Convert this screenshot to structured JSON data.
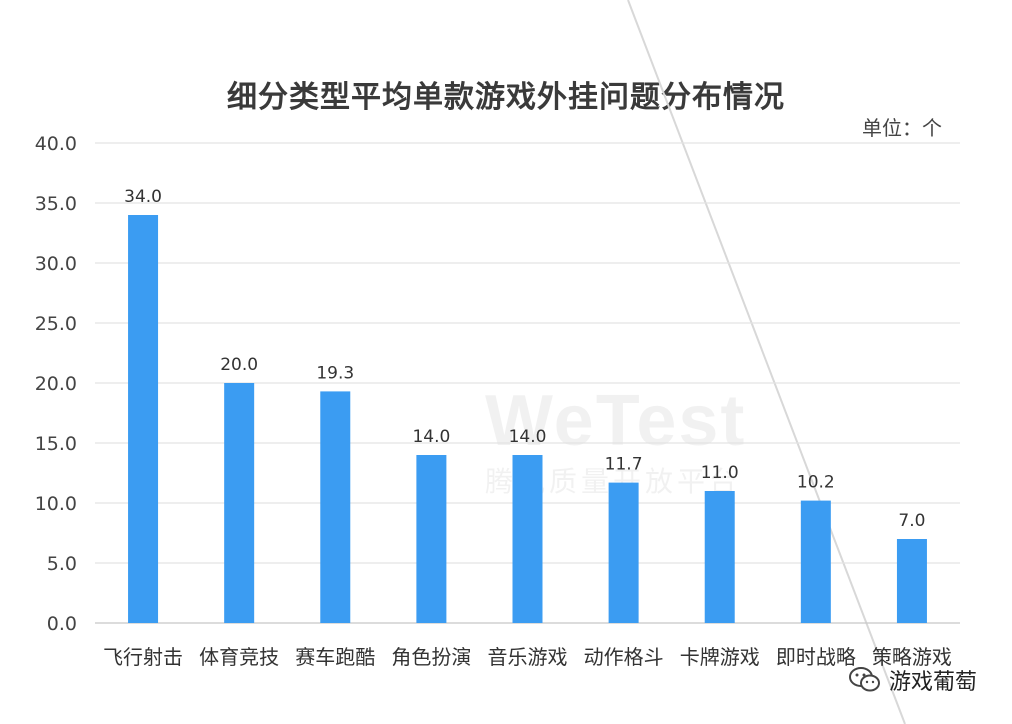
{
  "chart_data": {
    "type": "bar",
    "title": "细分类型平均单款游戏外挂问题分布情况",
    "unit_label": "单位：个",
    "categories": [
      "飞行射击",
      "体育竞技",
      "赛车跑酷",
      "角色扮演",
      "音乐游戏",
      "动作格斗",
      "卡牌游戏",
      "即时战略",
      "策略游戏"
    ],
    "values": [
      34.0,
      20.0,
      19.3,
      14.0,
      14.0,
      11.7,
      11.0,
      10.2,
      7.0
    ],
    "value_labels": [
      "34.0",
      "20.0",
      "19.3",
      "14.0",
      "14.0",
      "11.7",
      "11.0",
      "10.2",
      "7.0"
    ],
    "yticks": [
      "0.0",
      "5.0",
      "10.0",
      "15.0",
      "20.0",
      "25.0",
      "30.0",
      "35.0",
      "40.0"
    ],
    "ylim": [
      0,
      40
    ],
    "grid": true,
    "bar_color": "#3b9cf2"
  },
  "watermark": {
    "logo": "WeTest",
    "subtitle": "腾讯质量开放平台"
  },
  "footer": {
    "wechat_account": "游戏葡萄",
    "icon": "wechat-icon"
  }
}
